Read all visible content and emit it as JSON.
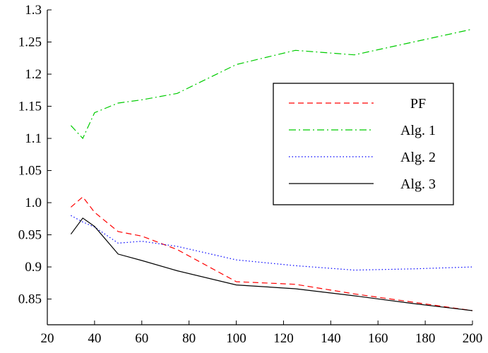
{
  "chart_data": {
    "type": "line",
    "title": "",
    "xlabel": "",
    "ylabel": "",
    "xlim": [
      20,
      200
    ],
    "ylim": [
      0.81,
      1.3
    ],
    "xticks": [
      "20",
      "40",
      "60",
      "80",
      "100",
      "120",
      "140",
      "160",
      "180",
      "200"
    ],
    "yticks": [
      "0.85",
      "0.9",
      "0.95",
      "1.0",
      "1.05",
      "1.1",
      "1.15",
      "1.2",
      "1.25",
      "1.3"
    ],
    "grid": false,
    "legend_position": "right",
    "series": [
      {
        "name": "PF",
        "color": "#ff0000",
        "dash": "dashed",
        "x": [
          30,
          35,
          40,
          50,
          60,
          75,
          100,
          125,
          150,
          175,
          200
        ],
        "y": [
          0.993,
          1.009,
          0.985,
          0.955,
          0.948,
          0.927,
          0.877,
          0.873,
          0.858,
          0.845,
          0.832
        ]
      },
      {
        "name": "Alg. 1",
        "color": "#00cc00",
        "dash": "dashdot",
        "x": [
          30,
          35,
          40,
          50,
          60,
          75,
          100,
          125,
          150,
          175,
          200
        ],
        "y": [
          1.12,
          1.1,
          1.14,
          1.155,
          1.16,
          1.17,
          1.215,
          1.237,
          1.23,
          1.25,
          1.27
        ]
      },
      {
        "name": "Alg. 2",
        "color": "#0000ff",
        "dash": "dotted",
        "x": [
          30,
          35,
          40,
          50,
          60,
          75,
          100,
          125,
          150,
          175,
          200
        ],
        "y": [
          0.98,
          0.97,
          0.962,
          0.937,
          0.94,
          0.932,
          0.911,
          0.902,
          0.895,
          0.897,
          0.9
        ]
      },
      {
        "name": "Alg. 3",
        "color": "#000000",
        "dash": "solid",
        "x": [
          30,
          35,
          40,
          50,
          60,
          75,
          100,
          125,
          150,
          175,
          200
        ],
        "y": [
          0.951,
          0.976,
          0.963,
          0.92,
          0.91,
          0.894,
          0.872,
          0.866,
          0.855,
          0.843,
          0.832
        ]
      }
    ]
  }
}
